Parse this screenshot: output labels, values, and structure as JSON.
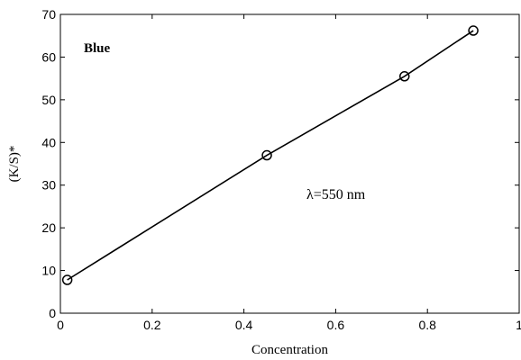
{
  "chart_data": {
    "type": "line",
    "title": "",
    "xlabel": "Concentration",
    "ylabel": "(K/S)*",
    "xlim": [
      0,
      1
    ],
    "ylim": [
      0,
      70
    ],
    "xticks": [
      0,
      0.2,
      0.4,
      0.6,
      0.8,
      1
    ],
    "xtick_labels": [
      "0",
      "0.2",
      "0.4",
      "0.6",
      "0.8",
      "1"
    ],
    "yticks": [
      0,
      10,
      20,
      30,
      40,
      50,
      60,
      70
    ],
    "ytick_labels": [
      "0",
      "10",
      "20",
      "30",
      "40",
      "50",
      "60",
      "70"
    ],
    "grid": false,
    "series": [
      {
        "x": [
          0.015,
          0.45,
          0.75,
          0.9
        ],
        "y": [
          7.8,
          37.0,
          55.5,
          66.2
        ],
        "marker": "circle",
        "color": "#000000"
      }
    ],
    "annotations": {
      "label_blue": "Blue",
      "label_wavelength": "λ=550 nm"
    }
  }
}
